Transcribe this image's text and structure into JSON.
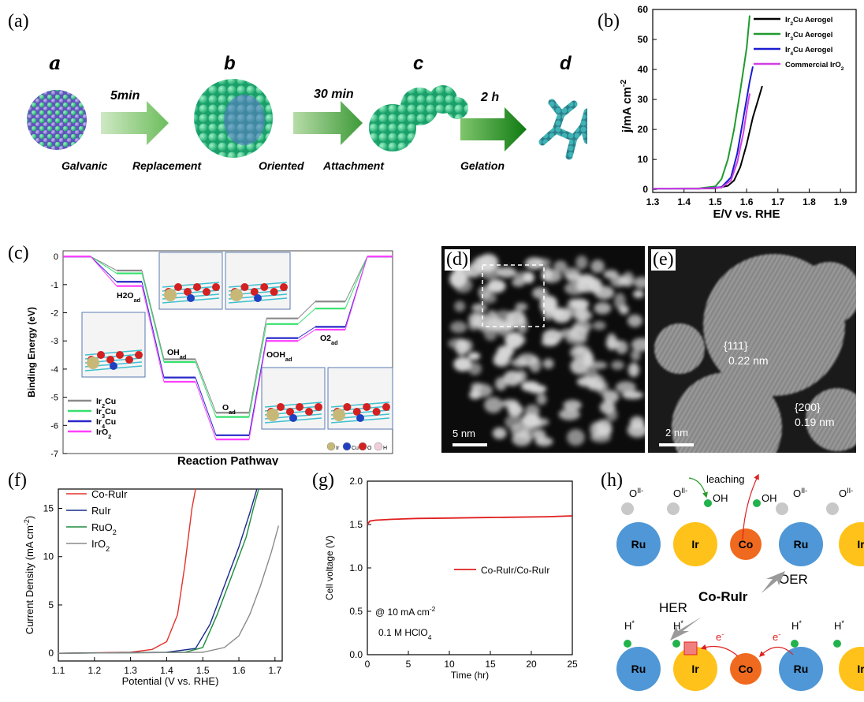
{
  "colors": {
    "ir2cu": "#000000",
    "ir3cu": "#1f9a2e",
    "ir4cu": "#1b1bd0",
    "iro2_b": "#d23ee6",
    "c_ir2cu": "#8a8a8a",
    "c_ir3cu": "#35e06d",
    "c_ir4cu": "#2828c8",
    "c_iro2": "#ff40ff",
    "f_corulr": "#e3332b",
    "f_rulr": "#1a2a8c",
    "f_ruo2": "#1d8a3b",
    "f_iro2": "#8a8a8a",
    "g_line": "#e02020",
    "atom_green": "#33c98a",
    "atom_purple": "#8a7ad8",
    "ru_blue": "#4f97d6",
    "ir_yellow": "#ffc21a",
    "co_orange": "#ef6a1e",
    "arrow_green": "#6cbd5c"
  },
  "panel_a": {
    "label": "(a)",
    "stage_labels": [
      "a",
      "b",
      "c",
      "d"
    ],
    "arrow_labels": [
      "5min",
      "30 min",
      "2 h"
    ],
    "process_labels": [
      "Galvanic",
      "Replacement",
      "Oriented",
      "Attachment",
      "Gelation"
    ]
  },
  "panel_b": {
    "label": "(b)"
  },
  "panel_c": {
    "label": "(c)",
    "states": [
      "H2O",
      "OH",
      "O",
      "OOH",
      "O2"
    ],
    "states_sub": "ad",
    "atom_legend": [
      "Ir",
      "Cu",
      "O",
      "H"
    ]
  },
  "panel_d": {
    "label": "(d)",
    "scale": "5 nm"
  },
  "panel_e": {
    "label": "(e)",
    "scale": "2 nm",
    "plane1": "{111}",
    "dist1": "0.22 nm",
    "plane2": "{200}",
    "dist2": "0.19 nm"
  },
  "panel_f": {
    "label": "(f)"
  },
  "panel_g": {
    "label": "(g)",
    "note1": "@ 10 mA cm",
    "note1_sup": "-2",
    "note2": "0.1 M HClO",
    "note2_sub": "4"
  },
  "panel_h": {
    "label": "(h)",
    "leaching": "leaching",
    "oxide": "O",
    "oxide_sup": "II-",
    "oh": "OH",
    "center": "Co-RuIr",
    "oer": "OER",
    "her": "HER",
    "hstar": "H",
    "hstar_sup": "*",
    "electron": "e",
    "electron_sup": "-",
    "metals_top": [
      "Ru",
      "Ir",
      "Co",
      "Ru",
      "Ir"
    ],
    "metals_bottom": [
      "Ru",
      "Ir",
      "Co",
      "Ru",
      "Ir"
    ]
  },
  "chart_data": [
    {
      "id": "b",
      "type": "line",
      "xlabel": "E/V vs. RHE",
      "ylabel": "j/mA cm",
      "ylabel_sup": "-2",
      "xlim": [
        1.3,
        1.95
      ],
      "ylim": [
        -1,
        60
      ],
      "xticks": [
        "1.3",
        "1.4",
        "1.5",
        "1.6",
        "1.7",
        "1.8",
        "1.9"
      ],
      "yticks": [
        "0",
        "10",
        "20",
        "30",
        "40",
        "50",
        "60"
      ],
      "legend_position": "top-right",
      "series": [
        {
          "name": "Ir2Cu Aerogel",
          "name_main": "Ir",
          "name_sub": "2",
          "name_rest": "Cu Aerogel",
          "color_key": "ir2cu",
          "x": [
            1.3,
            1.45,
            1.5,
            1.54,
            1.56,
            1.58,
            1.6,
            1.62,
            1.64,
            1.65
          ],
          "y": [
            0.3,
            0.3,
            0.4,
            1.2,
            3,
            7.5,
            15,
            24,
            31,
            34.5
          ]
        },
        {
          "name": "Ir3Cu Aerogel",
          "name_main": "Ir",
          "name_sub": "3",
          "name_rest": "Cu Aerogel",
          "color_key": "ir3cu",
          "x": [
            1.3,
            1.45,
            1.5,
            1.52,
            1.54,
            1.56,
            1.58,
            1.6,
            1.61
          ],
          "y": [
            0.3,
            0.4,
            1,
            3.5,
            10,
            20,
            33,
            47,
            58
          ]
        },
        {
          "name": "Ir4Cu Aerogel",
          "name_main": "Ir",
          "name_sub": "4",
          "name_rest": "Cu Aerogel",
          "color_key": "ir4cu",
          "x": [
            1.3,
            1.45,
            1.52,
            1.55,
            1.57,
            1.59,
            1.61,
            1.62
          ],
          "y": [
            0.3,
            0.3,
            0.8,
            4,
            12,
            24,
            36,
            41
          ]
        },
        {
          "name": "Commercial IrO2",
          "name_main": "Commercial IrO",
          "name_sub": "2",
          "name_rest": "",
          "color_key": "iro2_b",
          "x": [
            1.3,
            1.45,
            1.52,
            1.55,
            1.57,
            1.59,
            1.6,
            1.61
          ],
          "y": [
            0.3,
            0.3,
            0.6,
            3,
            9,
            19,
            26,
            32
          ]
        }
      ]
    },
    {
      "id": "c",
      "type": "line",
      "xlabel": "Reaction Pathway",
      "ylabel": "Binding Energy (eV)",
      "ylim": [
        -7,
        0.2
      ],
      "yticks": [
        "0",
        "-1",
        "-2",
        "-3",
        "-4",
        "-5",
        "-6",
        "-7"
      ],
      "legend_position": "bottom-left",
      "series": [
        {
          "name": "Ir2Cu",
          "name_main": "Ir",
          "name_sub": "2",
          "name_rest": "Cu",
          "color_key": "c_ir2cu",
          "values": [
            0,
            -0.5,
            -3.65,
            -5.55,
            -2.2,
            -1.6,
            0
          ]
        },
        {
          "name": "Ir3Cu",
          "name_main": "Ir",
          "name_sub": "3",
          "name_rest": "Cu",
          "color_key": "c_ir3cu",
          "values": [
            0,
            -0.6,
            -3.75,
            -5.7,
            -2.4,
            -1.85,
            0
          ]
        },
        {
          "name": "Ir4Cu",
          "name_main": "Ir",
          "name_sub": "4",
          "name_rest": "Cu",
          "color_key": "c_ir4cu",
          "values": [
            0,
            -0.9,
            -4.3,
            -6.35,
            -2.9,
            -2.5,
            0
          ]
        },
        {
          "name": "IrO2",
          "name_main": "IrO",
          "name_sub": "2",
          "name_rest": "",
          "color_key": "c_iro2",
          "values": [
            0,
            -1.05,
            -4.45,
            -6.5,
            -3.0,
            -2.6,
            0
          ]
        }
      ]
    },
    {
      "id": "f",
      "type": "line",
      "xlabel": "Potential (V vs. RHE)",
      "ylabel": "Current Density (mA cm",
      "ylabel_sup": "-2",
      "ylabel_end": ")",
      "xlim": [
        1.1,
        1.72
      ],
      "ylim": [
        -0.8,
        17
      ],
      "xticks": [
        "1.1",
        "1.2",
        "1.3",
        "1.4",
        "1.5",
        "1.6",
        "1.7"
      ],
      "yticks": [
        "0",
        "5",
        "10",
        "15"
      ],
      "legend_position": "top-left",
      "series": [
        {
          "name": "Co-RuIr",
          "name_main": "Co-RuIr",
          "name_sub": "",
          "name_rest": "",
          "color_key": "f_corulr",
          "x": [
            1.1,
            1.3,
            1.36,
            1.4,
            1.43,
            1.45,
            1.47,
            1.48
          ],
          "y": [
            0,
            0.1,
            0.4,
            1.2,
            4,
            9,
            15,
            17
          ]
        },
        {
          "name": "RuIr",
          "name_main": "RuIr",
          "name_sub": "",
          "name_rest": "",
          "color_key": "f_rulr",
          "x": [
            1.1,
            1.4,
            1.48,
            1.52,
            1.56,
            1.6,
            1.63,
            1.65
          ],
          "y": [
            0,
            0.1,
            0.5,
            3,
            7,
            11,
            14.5,
            17
          ]
        },
        {
          "name": "RuO2",
          "name_main": "RuO",
          "name_sub": "2",
          "name_rest": "",
          "color_key": "f_ruo2",
          "x": [
            1.1,
            1.45,
            1.5,
            1.54,
            1.58,
            1.62,
            1.64,
            1.655
          ],
          "y": [
            0,
            0.1,
            0.6,
            4,
            8,
            12,
            15,
            17
          ]
        },
        {
          "name": "IrO2",
          "name_main": "IrO",
          "name_sub": "2",
          "name_rest": "",
          "color_key": "f_iro2",
          "x": [
            1.1,
            1.5,
            1.56,
            1.6,
            1.63,
            1.66,
            1.69,
            1.71
          ],
          "y": [
            0,
            0.1,
            0.6,
            1.8,
            4,
            7,
            10.5,
            13.2
          ]
        }
      ]
    },
    {
      "id": "g",
      "type": "line",
      "xlabel": "Time (hr)",
      "ylabel": "Cell voltage (V)",
      "xlim": [
        0,
        25
      ],
      "ylim": [
        0,
        2.0
      ],
      "xticks": [
        "0",
        "5",
        "10",
        "15",
        "20",
        "25"
      ],
      "yticks": [
        "0.0",
        "0.5",
        "1.0",
        "1.5",
        "2.0"
      ],
      "legend_position": "right",
      "series": [
        {
          "name": "Co-RuIr/Co-RuIr",
          "color_key": "g_line",
          "x": [
            0,
            0.3,
            1,
            3,
            6,
            10,
            14,
            18,
            22,
            25
          ],
          "y": [
            1.5,
            1.54,
            1.55,
            1.56,
            1.57,
            1.575,
            1.58,
            1.585,
            1.59,
            1.6
          ]
        }
      ]
    }
  ]
}
